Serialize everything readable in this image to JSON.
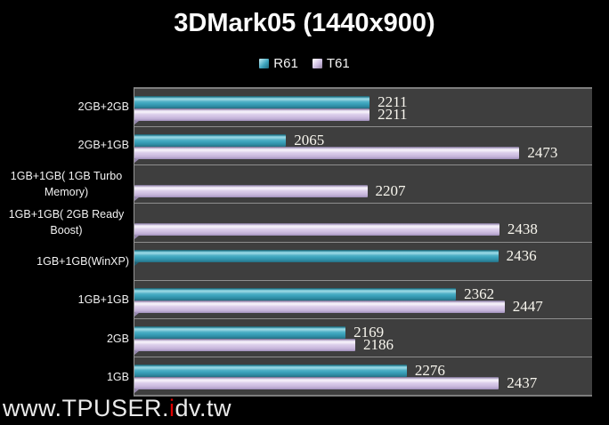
{
  "title": "3DMark05 (1440x900)",
  "watermark": {
    "prefix": "www.TPUSER.",
    "highlight": "i",
    "suffix": "dv.tw"
  },
  "colors": {
    "background": "#000000",
    "plot_background": "#3E3E3E",
    "separator": "#8E8E8E",
    "r61_bar": "#3AA2BB",
    "t61_bar": "#D5C6E6",
    "value_text": "#F8F6EE",
    "watermark_accent": "#E00000"
  },
  "chart_data": {
    "type": "bar",
    "orientation": "horizontal",
    "title": "3DMark05 (1440x900)",
    "xlabel": "",
    "ylabel": "",
    "grid": false,
    "legend_position": "top",
    "data_labels": true,
    "value_axis": {
      "min": 1800,
      "max": 2600
    },
    "categories": [
      "2GB+2GB",
      "2GB+1GB",
      "1GB+1GB( 1GB Turbo Memory)",
      "1GB+1GB( 2GB Ready Boost)",
      "1GB+1GB(WinXP)",
      "1GB+1GB",
      "2GB",
      "1GB"
    ],
    "series": [
      {
        "name": "R61",
        "color": "#3AA2BB",
        "values": [
          2211,
          2065,
          null,
          null,
          2436,
          2362,
          2169,
          2276
        ]
      },
      {
        "name": "T61",
        "color": "#D5C6E6",
        "values": [
          2211,
          2473,
          2207,
          2438,
          null,
          2447,
          2186,
          2437
        ]
      }
    ]
  }
}
